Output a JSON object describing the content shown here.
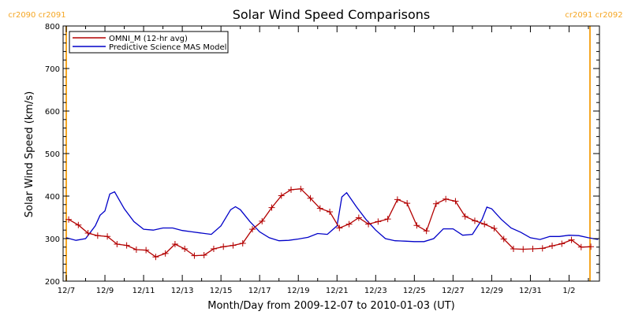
{
  "chart_data": {
    "type": "line",
    "title": "Solar Wind Speed Comparisons",
    "xlabel": "Month/Day from 2009-12-07 to 2010-01-03 (UT)",
    "ylabel": "Solar Wind Speed (km/s)",
    "xlim": [
      "2009-12-07",
      "2010-01-03"
    ],
    "ylim": [
      200,
      800
    ],
    "y_ticks": [
      200,
      300,
      400,
      500,
      600,
      700,
      800
    ],
    "x_ticks": [
      {
        "date": "2009-12-07",
        "label": "12/7"
      },
      {
        "date": "2009-12-09",
        "label": "12/9"
      },
      {
        "date": "2009-12-11",
        "label": "12/11"
      },
      {
        "date": "2009-12-13",
        "label": "12/13"
      },
      {
        "date": "2009-12-15",
        "label": "12/15"
      },
      {
        "date": "2009-12-17",
        "label": "12/17"
      },
      {
        "date": "2009-12-19",
        "label": "12/19"
      },
      {
        "date": "2009-12-21",
        "label": "12/21"
      },
      {
        "date": "2009-12-23",
        "label": "12/23"
      },
      {
        "date": "2009-12-25",
        "label": "12/25"
      },
      {
        "date": "2009-12-27",
        "label": "12/27"
      },
      {
        "date": "2009-12-29",
        "label": "12/29"
      },
      {
        "date": "2009-12-31",
        "label": "12/31"
      },
      {
        "date": "2010-01-02",
        "label": "1/2"
      }
    ],
    "grid": false,
    "legend_position": "top-left",
    "series": [
      {
        "name": "OMNI_M (12-hr avg)",
        "color": "#b30000",
        "marker": "plus",
        "points": [
          [
            "2009-12-07 03:00",
            345
          ],
          [
            "2009-12-07 15:00",
            332
          ],
          [
            "2009-12-08 03:00",
            313
          ],
          [
            "2009-12-08 15:00",
            307
          ],
          [
            "2009-12-09 03:00",
            305
          ],
          [
            "2009-12-09 15:00",
            287
          ],
          [
            "2009-12-10 03:00",
            284
          ],
          [
            "2009-12-10 15:00",
            274
          ],
          [
            "2009-12-11 03:00",
            273
          ],
          [
            "2009-12-11 15:00",
            257
          ],
          [
            "2009-12-12 03:00",
            265
          ],
          [
            "2009-12-12 15:00",
            287
          ],
          [
            "2009-12-13 03:00",
            276
          ],
          [
            "2009-12-13 15:00",
            260
          ],
          [
            "2009-12-14 03:00",
            261
          ],
          [
            "2009-12-14 15:00",
            276
          ],
          [
            "2009-12-15 03:00",
            281
          ],
          [
            "2009-12-15 15:00",
            284
          ],
          [
            "2009-12-16 03:00",
            289
          ],
          [
            "2009-12-16 15:00",
            322
          ],
          [
            "2009-12-17 03:00",
            341
          ],
          [
            "2009-12-17 15:00",
            373
          ],
          [
            "2009-12-18 03:00",
            401
          ],
          [
            "2009-12-18 15:00",
            415
          ],
          [
            "2009-12-19 03:00",
            417
          ],
          [
            "2009-12-19 15:00",
            395
          ],
          [
            "2009-12-20 03:00",
            371
          ],
          [
            "2009-12-20 15:00",
            363
          ],
          [
            "2009-12-21 03:00",
            325
          ],
          [
            "2009-12-21 15:00",
            334
          ],
          [
            "2009-12-22 03:00",
            349
          ],
          [
            "2009-12-22 15:00",
            334
          ],
          [
            "2009-12-23 03:00",
            340
          ],
          [
            "2009-12-23 15:00",
            346
          ],
          [
            "2009-12-24 03:00",
            392
          ],
          [
            "2009-12-24 15:00",
            383
          ],
          [
            "2009-12-25 03:00",
            331
          ],
          [
            "2009-12-25 15:00",
            318
          ],
          [
            "2009-12-26 03:00",
            382
          ],
          [
            "2009-12-26 15:00",
            393
          ],
          [
            "2009-12-27 03:00",
            388
          ],
          [
            "2009-12-27 15:00",
            352
          ],
          [
            "2009-12-28 03:00",
            342
          ],
          [
            "2009-12-28 15:00",
            334
          ],
          [
            "2009-12-29 03:00",
            324
          ],
          [
            "2009-12-29 15:00",
            299
          ],
          [
            "2009-12-30 03:00",
            276
          ],
          [
            "2009-12-30 15:00",
            275
          ],
          [
            "2009-12-31 03:00",
            276
          ],
          [
            "2009-12-31 15:00",
            277
          ],
          [
            "2010-01-01 03:00",
            283
          ],
          [
            "2010-01-01 15:00",
            288
          ],
          [
            "2010-01-02 03:00",
            297
          ],
          [
            "2010-01-02 15:00",
            280
          ],
          [
            "2010-01-03 03:00",
            281
          ]
        ]
      },
      {
        "name": "Predictive Science MAS Model",
        "color": "#0000c8",
        "marker": "none",
        "points": [
          [
            "2009-12-07 00:00",
            302
          ],
          [
            "2009-12-07 12:00",
            296
          ],
          [
            "2009-12-08 00:00",
            300
          ],
          [
            "2009-12-08 12:00",
            330
          ],
          [
            "2009-12-08 18:00",
            355
          ],
          [
            "2009-12-09 00:00",
            365
          ],
          [
            "2009-12-09 06:00",
            405
          ],
          [
            "2009-12-09 12:00",
            410
          ],
          [
            "2009-12-10 00:00",
            370
          ],
          [
            "2009-12-10 12:00",
            340
          ],
          [
            "2009-12-11 00:00",
            322
          ],
          [
            "2009-12-11 12:00",
            320
          ],
          [
            "2009-12-12 00:00",
            325
          ],
          [
            "2009-12-12 12:00",
            325
          ],
          [
            "2009-12-13 00:00",
            319
          ],
          [
            "2009-12-13 12:00",
            316
          ],
          [
            "2009-12-14 00:00",
            313
          ],
          [
            "2009-12-14 12:00",
            310
          ],
          [
            "2009-12-15 00:00",
            330
          ],
          [
            "2009-12-15 12:00",
            368
          ],
          [
            "2009-12-15 18:00",
            375
          ],
          [
            "2009-12-16 00:00",
            368
          ],
          [
            "2009-12-16 12:00",
            340
          ],
          [
            "2009-12-17 00:00",
            316
          ],
          [
            "2009-12-17 12:00",
            302
          ],
          [
            "2009-12-18 00:00",
            295
          ],
          [
            "2009-12-18 12:00",
            296
          ],
          [
            "2009-12-19 00:00",
            299
          ],
          [
            "2009-12-19 12:00",
            303
          ],
          [
            "2009-12-20 00:00",
            312
          ],
          [
            "2009-12-20 12:00",
            310
          ],
          [
            "2009-12-21 00:00",
            330
          ],
          [
            "2009-12-21 06:00",
            398
          ],
          [
            "2009-12-21 12:00",
            408
          ],
          [
            "2009-12-22 00:00",
            375
          ],
          [
            "2009-12-22 12:00",
            345
          ],
          [
            "2009-12-23 00:00",
            320
          ],
          [
            "2009-12-23 12:00",
            300
          ],
          [
            "2009-12-24 00:00",
            295
          ],
          [
            "2009-12-24 12:00",
            294
          ],
          [
            "2009-12-25 00:00",
            293
          ],
          [
            "2009-12-25 12:00",
            293
          ],
          [
            "2009-12-26 00:00",
            300
          ],
          [
            "2009-12-26 12:00",
            323
          ],
          [
            "2009-12-27 00:00",
            323
          ],
          [
            "2009-12-27 12:00",
            308
          ],
          [
            "2009-12-28 00:00",
            310
          ],
          [
            "2009-12-28 12:00",
            345
          ],
          [
            "2009-12-28 18:00",
            374
          ],
          [
            "2009-12-29 00:00",
            370
          ],
          [
            "2009-12-29 12:00",
            345
          ],
          [
            "2009-12-30 00:00",
            325
          ],
          [
            "2009-12-30 12:00",
            315
          ],
          [
            "2009-12-31 00:00",
            302
          ],
          [
            "2009-12-31 12:00",
            298
          ],
          [
            "2010-01-01 00:00",
            305
          ],
          [
            "2010-01-01 12:00",
            305
          ],
          [
            "2010-01-02 00:00",
            308
          ],
          [
            "2010-01-02 12:00",
            307
          ],
          [
            "2010-01-03 00:00",
            302
          ],
          [
            "2010-01-03 12:00",
            298
          ]
        ]
      }
    ],
    "annotations": [
      {
        "text": "cr2090 cr2091",
        "at": "2009-12-07",
        "side": "left",
        "color": "#f5a623"
      },
      {
        "text": "cr2091 cr2092",
        "at": "2010-01-03",
        "side": "right",
        "color": "#f5a623"
      }
    ]
  }
}
